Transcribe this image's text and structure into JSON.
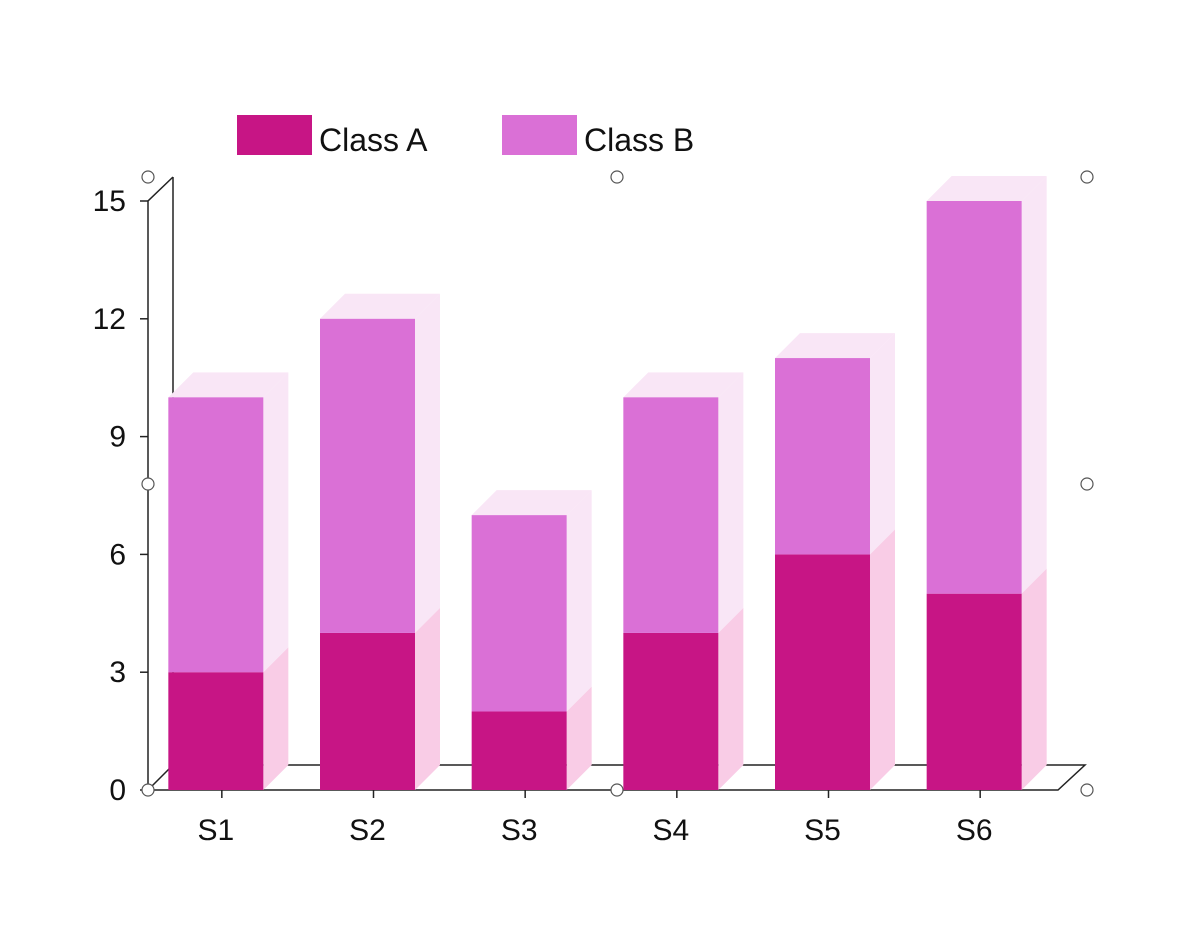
{
  "chart_data": {
    "type": "bar",
    "stacked": true,
    "style": "3d",
    "title": "",
    "xlabel": "",
    "ylabel": "",
    "categories": [
      "S1",
      "S2",
      "S3",
      "S4",
      "S5",
      "S6"
    ],
    "series": [
      {
        "name": "Class A",
        "values": [
          3,
          4,
          2,
          4,
          6,
          5
        ],
        "color": "#C71585",
        "side_color": "#F9CCE6"
      },
      {
        "name": "Class B",
        "values": [
          7,
          8,
          5,
          6,
          5,
          10
        ],
        "color": "#DA70D6",
        "side_color": "#F9E6F6"
      }
    ],
    "ylim": [
      0,
      15
    ],
    "yticks": [
      0,
      3,
      6,
      9,
      12,
      15
    ],
    "grid": false,
    "legend_position": "top",
    "selection_handles": true
  }
}
